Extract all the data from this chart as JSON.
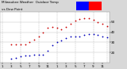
{
  "title_line1": "Milwaukee Weather  Outdoor Temp",
  "title_line2": "vs Dew Point",
  "title_fontsize": 3.0,
  "background_color": "#d8d8d8",
  "plot_bg_color": "#ffffff",
  "legend_temp_color": "#ff0000",
  "legend_dew_color": "#0000ff",
  "x_hours": [
    0,
    1,
    2,
    3,
    4,
    5,
    6,
    7,
    8,
    9,
    10,
    11,
    12,
    13,
    14,
    15,
    16,
    17,
    18,
    19,
    20,
    21,
    22,
    23
  ],
  "temp_values": [
    null,
    null,
    28,
    28,
    28,
    28,
    30,
    33,
    36,
    40,
    44,
    45,
    44,
    43,
    45,
    48,
    51,
    53,
    54,
    54,
    52,
    50,
    48,
    46
  ],
  "dew_values": [
    null,
    null,
    14,
    15,
    16,
    17,
    17,
    18,
    18,
    18,
    22,
    27,
    30,
    32,
    34,
    36,
    36,
    36,
    37,
    38,
    38,
    37,
    36,
    35
  ],
  "ylim": [
    10,
    60
  ],
  "ytick_values": [
    20,
    30,
    40,
    50
  ],
  "temp_dot_color": "#cc0000",
  "dew_dot_color": "#0000bb",
  "grid_color": "#bbbbbb",
  "vline_x": [
    0,
    4,
    8,
    12,
    16,
    20,
    23
  ],
  "markersize": 1.3,
  "tick_fontsize": 3.0,
  "x_tick_positions": [
    0,
    2,
    4,
    6,
    8,
    10,
    12,
    14,
    16,
    18,
    20,
    22
  ],
  "x_tick_labels": [
    "1",
    "3",
    "5",
    "7",
    "9",
    "11",
    "1",
    "3",
    "5",
    "7",
    "9",
    "11"
  ]
}
